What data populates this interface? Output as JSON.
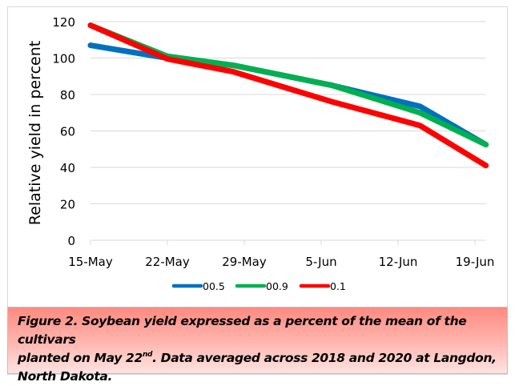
{
  "chart_data": {
    "type": "line",
    "title": "",
    "xlabel": "",
    "ylabel": "Relative yield in percent",
    "x_type": "date",
    "x_ticks": [
      "15-May",
      "22-May",
      "29-May",
      "5-Jun",
      "12-Jun",
      "19-Jun"
    ],
    "x_tick_days": [
      0,
      7,
      14,
      21,
      28,
      35
    ],
    "x_range_days": [
      0,
      36
    ],
    "ylim": [
      0,
      120
    ],
    "y_ticks": [
      0,
      20,
      40,
      60,
      80,
      100,
      120
    ],
    "grid": true,
    "legend_position": "bottom",
    "x": [
      "15-May",
      "22-May",
      "28-May",
      "6-Jun",
      "14-Jun",
      "20-Jun"
    ],
    "x_days": [
      0,
      7,
      13,
      22,
      30,
      36
    ],
    "series": [
      {
        "name": "00.5",
        "color": "#0070c0",
        "values": [
          107,
          100,
          96,
          85,
          73.5,
          52.5
        ]
      },
      {
        "name": "00.9",
        "color": "#00b050",
        "values": [
          118,
          101,
          96,
          85,
          70,
          52.5
        ]
      },
      {
        "name": "0.1",
        "color": "#ff0000",
        "values": [
          118,
          99.5,
          92.5,
          76,
          63,
          41
        ]
      }
    ]
  },
  "caption": {
    "line1": "Figure 2. Soybean yield expressed as a percent of the mean of the cultivars",
    "line2_prefix": "planted on May 22",
    "line2_sup": "nd",
    "line2_suffix": ". Data averaged across 2018 and 2020 at Langdon,",
    "line3": "North Dakota."
  }
}
